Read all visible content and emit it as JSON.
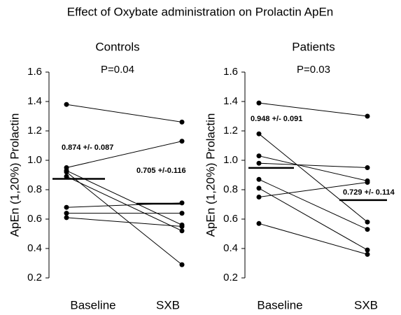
{
  "title": "Effect of Oxybate administration on Prolactin ApEn",
  "chart_data": [
    {
      "type": "paired",
      "title": "Controls",
      "annotation": "P=0.04",
      "ylabel": "ApEn (1,20%) Prolactin",
      "categories": [
        "Baseline",
        "SXB"
      ],
      "color": "#000000",
      "ylim": [
        0.2,
        1.6
      ],
      "yticks": [
        1.6,
        1.4,
        1.2,
        {
          "value": 1,
          "label": "1.0"
        },
        0.8,
        0.6,
        0.4,
        0.2
      ],
      "series": [
        {
          "values": [
            1.38,
            1.26
          ]
        },
        {
          "values": [
            0.95,
            1.13
          ]
        },
        {
          "values": [
            0.93,
            0.56
          ]
        },
        {
          "values": [
            0.92,
            0.29
          ]
        },
        {
          "values": [
            0.89,
            0.52
          ]
        },
        {
          "values": [
            0.68,
            0.71
          ]
        },
        {
          "values": [
            0.64,
            0.64
          ]
        },
        {
          "values": [
            0.61,
            0.55
          ]
        }
      ],
      "means": {
        "values": [
          0.874,
          0.705
        ],
        "value_labels": [
          "0.874 +/- 0.087",
          "0.705 +/-0.116"
        ]
      }
    },
    {
      "type": "paired",
      "title": "Patients",
      "annotation": "P=0.03",
      "ylabel": "ApEn (1,20%) Prolactin",
      "categories": [
        "Baseline",
        "SXB"
      ],
      "color": "#000000",
      "ylim": [
        0.2,
        1.6
      ],
      "yticks": [
        1.6,
        1.4,
        1.2,
        {
          "value": 1,
          "label": "1.0"
        },
        0.8,
        0.6,
        0.4,
        0.2
      ],
      "series": [
        {
          "values": [
            1.39,
            1.3
          ]
        },
        {
          "values": [
            1.18,
            0.58
          ]
        },
        {
          "values": [
            1.03,
            0.86
          ]
        },
        {
          "values": [
            0.98,
            0.95
          ]
        },
        {
          "values": [
            0.87,
            0.53
          ]
        },
        {
          "values": [
            0.81,
            0.39
          ]
        },
        {
          "values": [
            0.75,
            0.85
          ]
        },
        {
          "values": [
            0.57,
            0.36
          ]
        }
      ],
      "means": {
        "values": [
          0.948,
          0.729
        ],
        "value_labels": [
          "0.948 +/- 0.091",
          "0.729 +/- 0.114"
        ]
      }
    }
  ]
}
